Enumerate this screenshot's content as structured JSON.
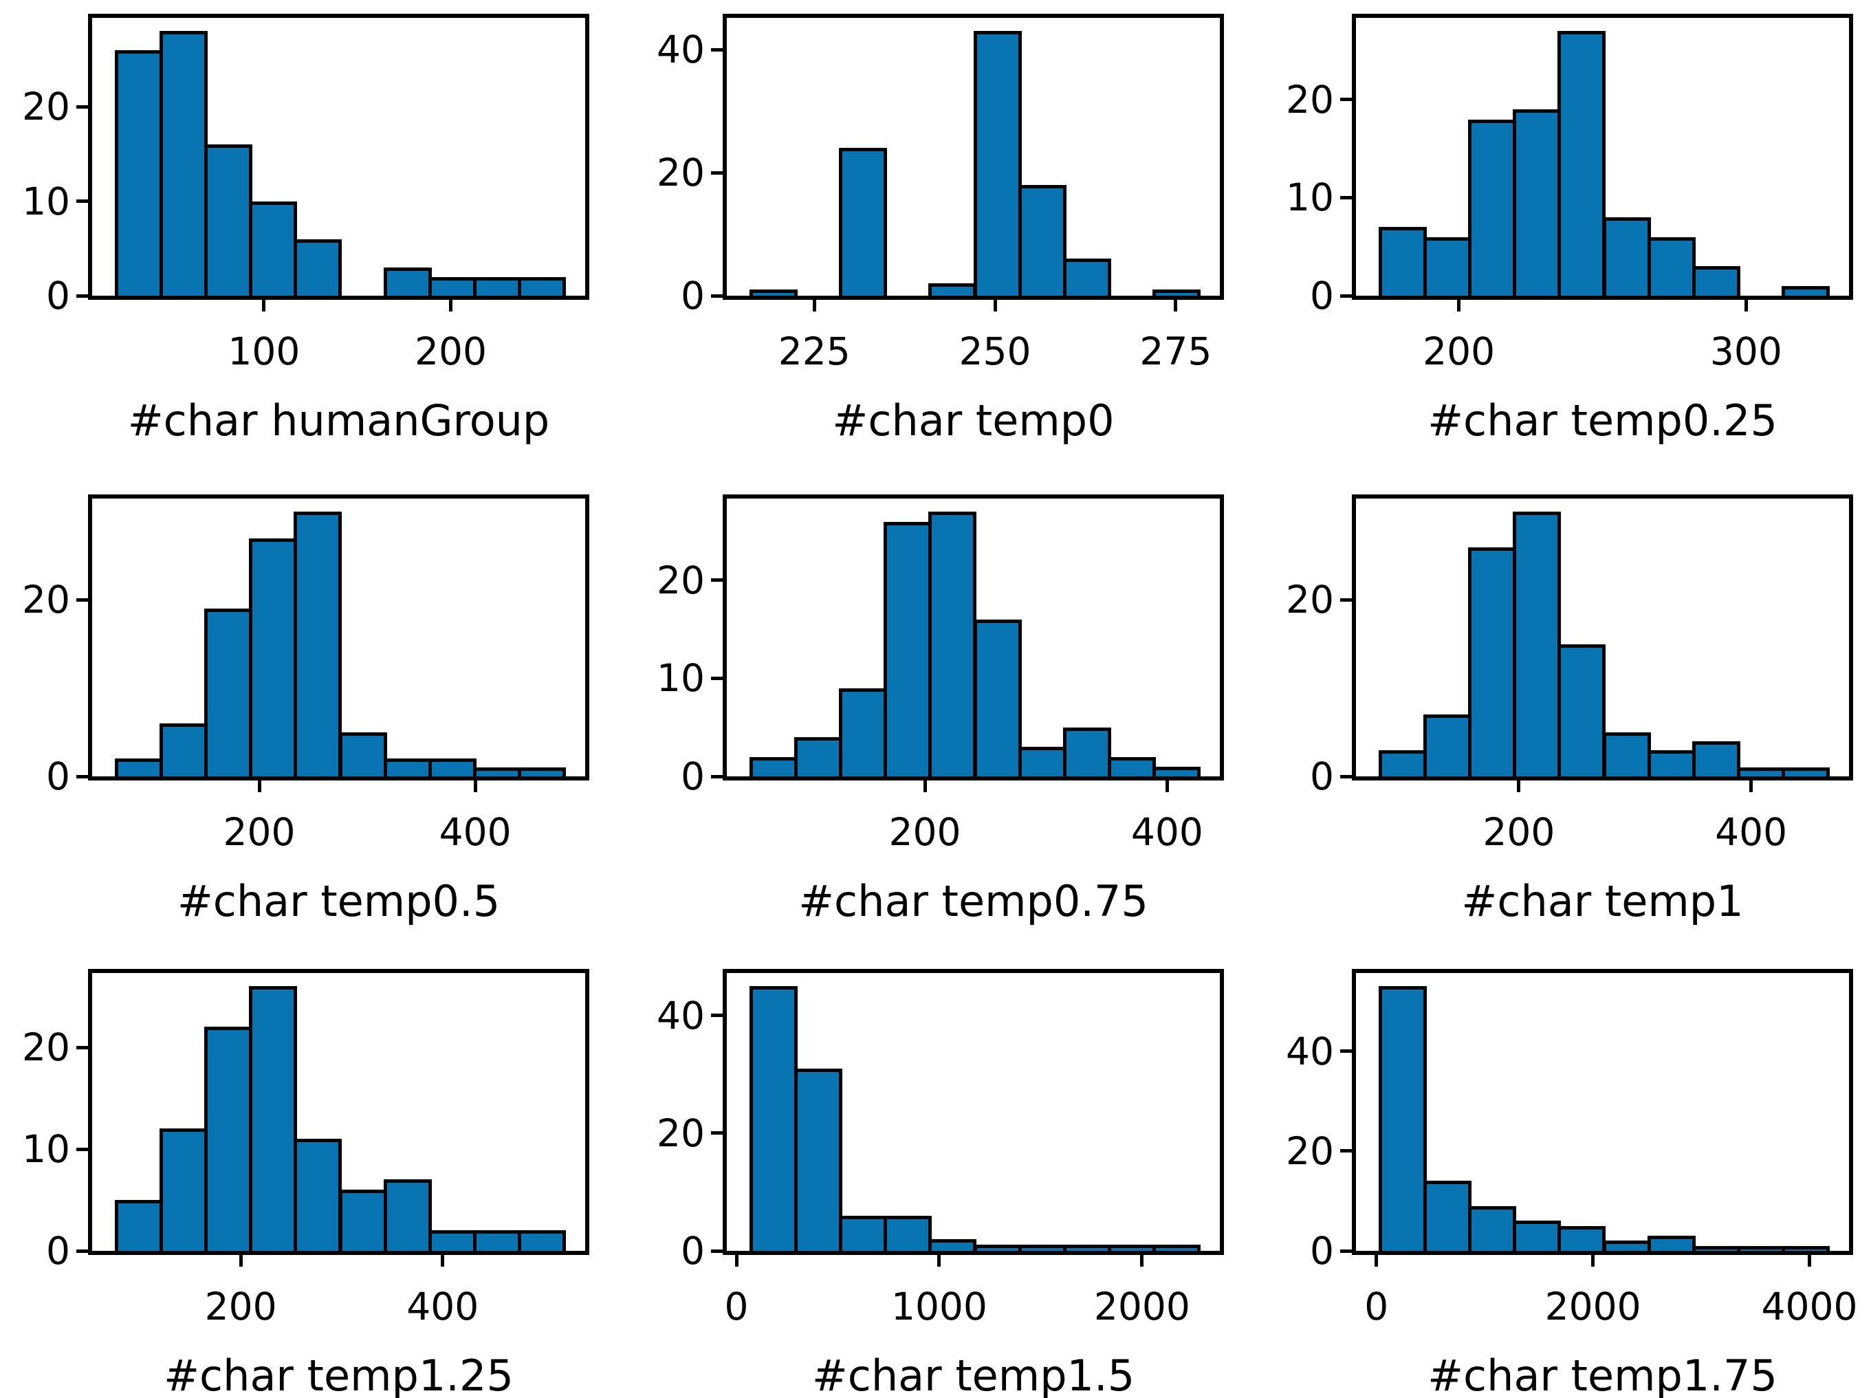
{
  "figure": {
    "background": "#ffffff",
    "bar_fill_color": "#0874b2",
    "bar_edge_color": "#000000",
    "text_color": "#000000",
    "grid": "off",
    "legend": "none"
  },
  "chart_data": [
    {
      "type": "bar",
      "subtype": "histogram",
      "xlabel": "#char humanGroup",
      "ylabel": "",
      "bin_start": 20,
      "bin_width": 24,
      "values": [
        26,
        28,
        16,
        10,
        6,
        0,
        3,
        2,
        2,
        2
      ],
      "xticks": [
        100,
        200
      ],
      "yticks": [
        0,
        10,
        20
      ],
      "ylim": [
        0,
        29.4
      ]
    },
    {
      "type": "bar",
      "subtype": "histogram",
      "xlabel": "#char temp0",
      "ylabel": "",
      "bin_start": 216,
      "bin_width": 6.2,
      "values": [
        1,
        0,
        24,
        0,
        2,
        43,
        18,
        6,
        0,
        1
      ],
      "xticks": [
        225,
        250,
        275
      ],
      "yticks": [
        0,
        20,
        40
      ],
      "ylim": [
        0,
        45.15
      ]
    },
    {
      "type": "bar",
      "subtype": "histogram",
      "xlabel": "#char temp0.25",
      "ylabel": "",
      "bin_start": 172,
      "bin_width": 15.6,
      "values": [
        7,
        6,
        18,
        19,
        27,
        8,
        6,
        3,
        0,
        1
      ],
      "xticks": [
        200,
        300
      ],
      "yticks": [
        0,
        10,
        20
      ],
      "ylim": [
        0,
        28.35
      ]
    },
    {
      "type": "bar",
      "subtype": "histogram",
      "xlabel": "#char temp0.5",
      "ylabel": "",
      "bin_start": 66,
      "bin_width": 41.5,
      "values": [
        2,
        6,
        19,
        27,
        30,
        5,
        2,
        2,
        1,
        1
      ],
      "xticks": [
        200,
        400
      ],
      "yticks": [
        0,
        20
      ],
      "ylim": [
        0,
        31.5
      ]
    },
    {
      "type": "bar",
      "subtype": "histogram",
      "xlabel": "#char temp0.75",
      "ylabel": "",
      "bin_start": 55,
      "bin_width": 37,
      "values": [
        2,
        4,
        9,
        26,
        27,
        16,
        3,
        5,
        2,
        1
      ],
      "xticks": [
        200,
        400
      ],
      "yticks": [
        0,
        10,
        20
      ],
      "ylim": [
        0,
        28.35
      ]
    },
    {
      "type": "bar",
      "subtype": "histogram",
      "xlabel": "#char temp1",
      "ylabel": "",
      "bin_start": 79,
      "bin_width": 38.6,
      "values": [
        3,
        7,
        26,
        30,
        15,
        5,
        3,
        4,
        1,
        1
      ],
      "xticks": [
        200,
        400
      ],
      "yticks": [
        0,
        20
      ],
      "ylim": [
        0,
        31.5
      ]
    },
    {
      "type": "bar",
      "subtype": "histogram",
      "xlabel": "#char temp1.25",
      "ylabel": "",
      "bin_start": 75,
      "bin_width": 44.4,
      "values": [
        5,
        12,
        22,
        26,
        11,
        6,
        7,
        2,
        2,
        2
      ],
      "xticks": [
        200,
        400
      ],
      "yticks": [
        0,
        10,
        20
      ],
      "ylim": [
        0,
        27.3
      ]
    },
    {
      "type": "bar",
      "subtype": "histogram",
      "xlabel": "#char temp1.5",
      "ylabel": "",
      "bin_start": 63,
      "bin_width": 221,
      "values": [
        45,
        31,
        6,
        6,
        2,
        1,
        1,
        1,
        1,
        1
      ],
      "xticks": [
        0,
        1000,
        2000
      ],
      "yticks": [
        0,
        20,
        40
      ],
      "ylim": [
        0,
        47.25
      ]
    },
    {
      "type": "bar",
      "subtype": "histogram",
      "xlabel": "#char temp1.75",
      "ylabel": "",
      "bin_start": 18,
      "bin_width": 414,
      "values": [
        53,
        14,
        9,
        6,
        5,
        2,
        3,
        1,
        1,
        1
      ],
      "xticks": [
        0,
        2000,
        4000
      ],
      "yticks": [
        0,
        20,
        40
      ],
      "ylim": [
        0,
        55.65
      ]
    }
  ]
}
